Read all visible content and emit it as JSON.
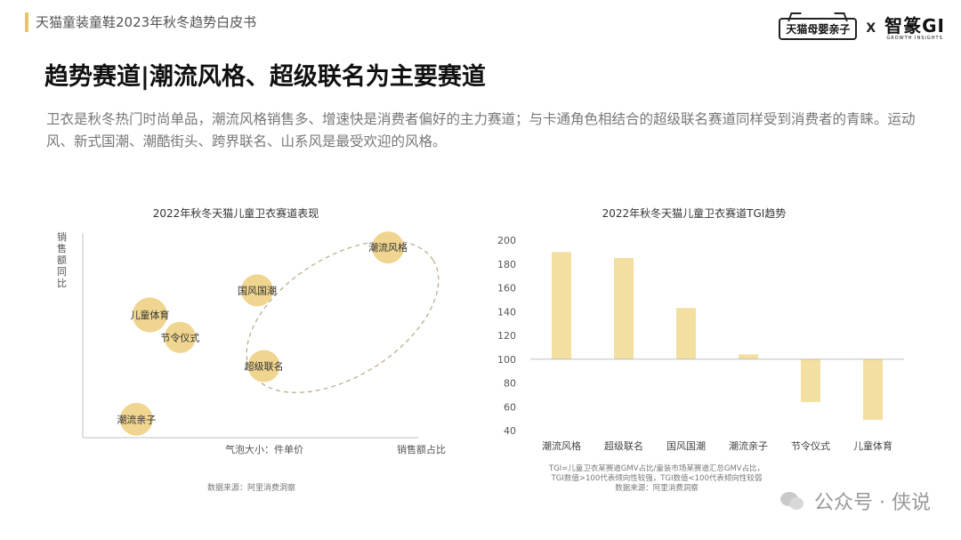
{
  "header": {
    "title": "天猫童装童鞋2023年秋冬趋势白皮书",
    "brand_left": "天猫母婴亲子",
    "brand_sep": "X",
    "brand_right_main": "智篆GI",
    "brand_right_sub": "GROWTH INSIGHTS"
  },
  "page": {
    "title": "趋势赛道|潮流风格、超级联名为主要赛道",
    "description": "卫衣是秋冬热门时尚单品，潮流风格销售多、增速快是消费者偏好的主力赛道；与卡通角色相结合的超级联名赛道同样受到消费者的青睐。运动风、新式国潮、潮酷街头、跨界联名、山系风是最受欢迎的风格。"
  },
  "colors": {
    "accent_gold": "#e6c56a",
    "bubble_fill": "#efd58f",
    "bar_fill": "#f3df9f",
    "ellipse_stroke": "#b7a88a",
    "axis": "#bfbfbf"
  },
  "chart_data": [
    {
      "type": "scatter",
      "title": "2022年秋冬天猫儿童卫衣赛道表现",
      "ylabel": "销售额同比",
      "xlabel": "销售额占比",
      "size_legend": "气泡大小：件单价",
      "source": "数据来源：阿里消费洞察",
      "points": [
        {
          "label": "潮流风格",
          "x": 0.91,
          "y": 0.93,
          "size": 0.75
        },
        {
          "label": "国风国潮",
          "x": 0.52,
          "y": 0.72,
          "size": 0.75
        },
        {
          "label": "儿童体育",
          "x": 0.2,
          "y": 0.6,
          "size": 0.95
        },
        {
          "label": "节令仪式",
          "x": 0.29,
          "y": 0.49,
          "size": 0.7
        },
        {
          "label": "超级联名",
          "x": 0.54,
          "y": 0.35,
          "size": 0.75
        },
        {
          "label": "潮流亲子",
          "x": 0.16,
          "y": 0.09,
          "size": 0.8
        }
      ],
      "highlight_group": [
        "潮流风格",
        "国风国潮",
        "超级联名"
      ]
    },
    {
      "type": "bar",
      "title": "2022年秋冬天猫儿童卫衣赛道TGI趋势",
      "categories": [
        "潮流风格",
        "超级联名",
        "国风国潮",
        "潮流亲子",
        "节令仪式",
        "儿童体育"
      ],
      "values": [
        190,
        185,
        143,
        104,
        64,
        49
      ],
      "baseline": 100,
      "ylim": [
        40,
        200
      ],
      "yticks": [
        40,
        60,
        80,
        100,
        120,
        140,
        160,
        180,
        200
      ],
      "note_lines": [
        "TGI=儿童卫衣某赛道GMV占比/童装市场某赛道汇总GMV占比，",
        "TGI数值>100代表倾向性较强，TGI数值<100代表倾向性较弱",
        "数据来源：阿里消费洞察"
      ]
    }
  ],
  "watermark": {
    "icon": "wechat-icon",
    "text": "公众号 · 侠说"
  }
}
